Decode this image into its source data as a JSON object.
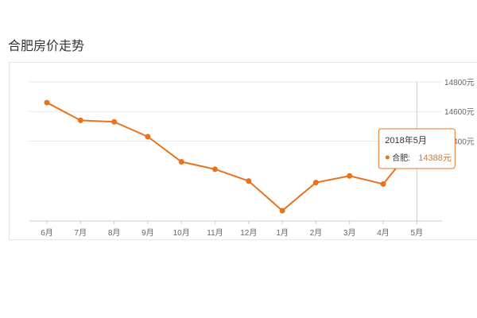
{
  "page": {
    "title": "合肥房价走势"
  },
  "chart_data": {
    "type": "line",
    "title": "",
    "xlabel": "",
    "ylabel": "",
    "categories": [
      "6月",
      "7月",
      "8月",
      "9月",
      "10月",
      "11月",
      "12月",
      "1月",
      "2月",
      "3月",
      "4月",
      "5月"
    ],
    "series": [
      {
        "name": "合肥",
        "values": [
          14660,
          14540,
          14530,
          14430,
          14260,
          14210,
          14130,
          13930,
          14120,
          14165,
          14110,
          14388
        ]
      }
    ],
    "y_ticks": [
      14400,
      14600,
      14800
    ],
    "y_tick_labels": [
      "14400元",
      "14600元",
      "14800元"
    ],
    "ylim": [
      13860,
      14800
    ],
    "grid": "horizontal",
    "line_color": "#e8731f",
    "tooltip": {
      "index": 11,
      "title": "2018年5月",
      "series_label": "合肥:",
      "value_label": "14388元"
    }
  }
}
